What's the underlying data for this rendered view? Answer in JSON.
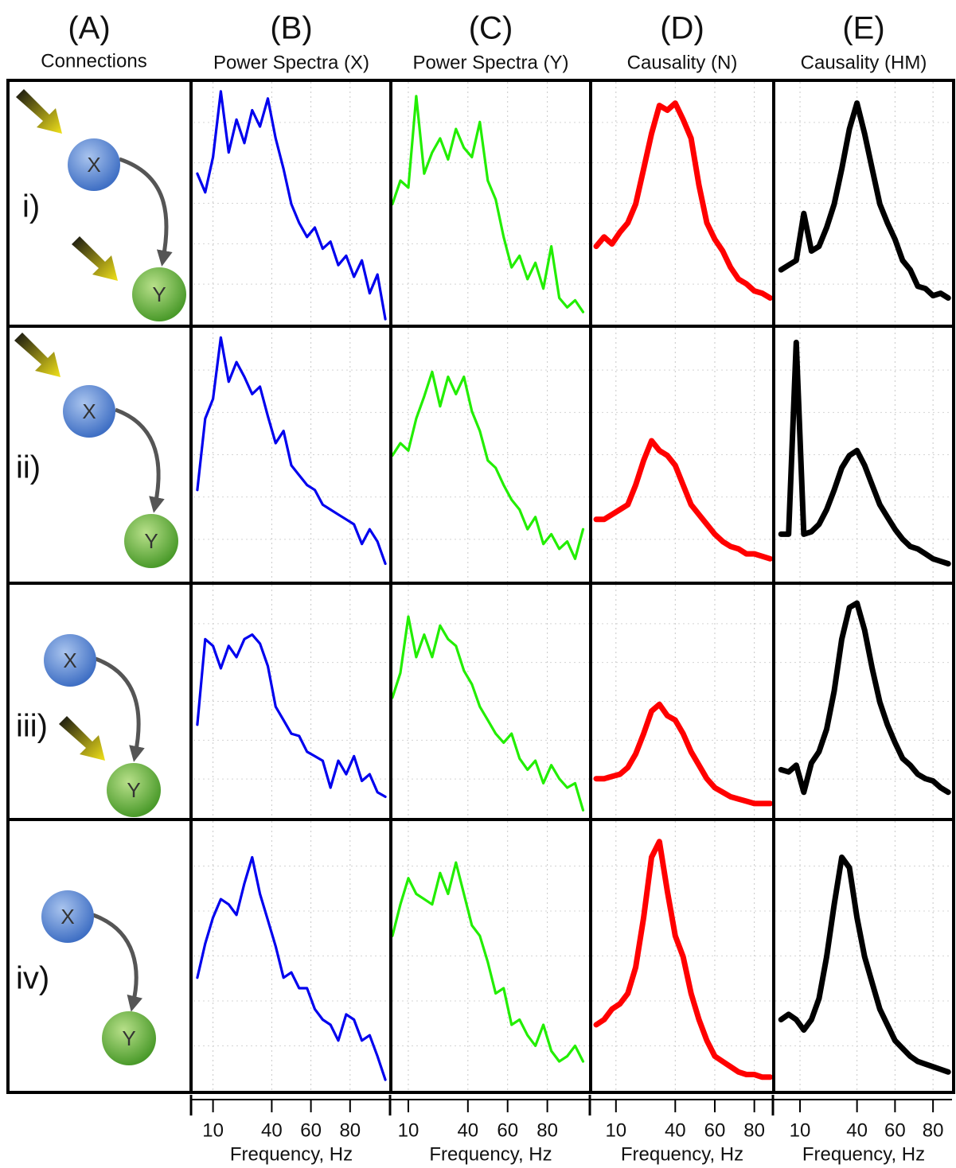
{
  "panel_a": {
    "letter": "(A)",
    "title": "Connections",
    "rows": [
      "i)",
      "ii)",
      "iii)",
      "iv)"
    ],
    "node_x": "X",
    "node_y": "Y"
  },
  "chart_data": [
    {
      "type": "line",
      "panel": "(B)",
      "title": "Power Spectra (X)",
      "x": [
        2,
        6,
        10,
        14,
        18,
        22,
        26,
        30,
        34,
        38,
        42,
        46,
        50,
        54,
        58,
        62,
        66,
        70,
        74,
        78,
        82,
        86,
        90,
        94,
        98
      ],
      "values": [
        6.3,
        5.5,
        7.0,
        9.8,
        7.2,
        8.6,
        7.6,
        9.0,
        8.3,
        9.5,
        7.8,
        6.5,
        5.0,
        4.2,
        3.6,
        4.0,
        3.1,
        3.4,
        2.4,
        2.8,
        1.9,
        2.6,
        1.2,
        2.0,
        0.1
      ],
      "color": "#0000ee",
      "xlim": [
        0,
        100
      ],
      "ylim": [
        0,
        10
      ],
      "xticks": [
        10,
        40,
        60,
        80
      ],
      "grid": true
    },
    {
      "type": "line",
      "panel": "(C)",
      "title": "Power Spectra (Y)",
      "x": [
        2,
        6,
        10,
        14,
        18,
        22,
        26,
        30,
        34,
        38,
        42,
        46,
        50,
        54,
        58,
        62,
        66,
        70,
        74,
        78,
        82,
        86,
        90,
        94,
        98
      ],
      "values": [
        5.0,
        6.0,
        5.7,
        9.6,
        6.3,
        7.2,
        7.8,
        6.9,
        8.2,
        7.4,
        7.0,
        8.5,
        6.0,
        5.2,
        3.6,
        2.3,
        2.8,
        1.8,
        2.5,
        1.4,
        3.2,
        1.0,
        0.6,
        0.9,
        0.4
      ],
      "color": "#22ee00",
      "xlim": [
        2,
        101
      ],
      "ylim": [
        0,
        10
      ],
      "xticks": [
        10,
        40,
        60,
        80
      ],
      "grid": true
    },
    {
      "type": "line",
      "panel": "(D)",
      "title": "Causality (N)",
      "x": [
        0,
        4,
        8,
        12,
        16,
        20,
        24,
        28,
        32,
        36,
        40,
        44,
        48,
        52,
        56,
        60,
        64,
        68,
        72,
        76,
        80,
        84,
        88
      ],
      "values": [
        3.2,
        3.6,
        3.3,
        3.8,
        4.2,
        5.0,
        6.5,
        8.0,
        9.2,
        9.0,
        9.3,
        8.6,
        7.8,
        5.8,
        4.2,
        3.5,
        3.0,
        2.3,
        1.8,
        1.6,
        1.3,
        1.2,
        1.0
      ],
      "color": "#ff0000",
      "xlim": [
        -2,
        89
      ],
      "ylim": [
        0,
        10
      ],
      "xticks": [
        10,
        40,
        60,
        80
      ],
      "grid": true
    },
    {
      "type": "line",
      "panel": "(E)",
      "title": "Causality (HM)",
      "x": [
        0,
        4,
        8,
        12,
        16,
        20,
        24,
        28,
        32,
        36,
        40,
        44,
        48,
        52,
        56,
        60,
        64,
        68,
        72,
        76,
        80,
        84,
        88
      ],
      "values": [
        2.2,
        2.4,
        2.6,
        4.6,
        3.0,
        3.2,
        4.0,
        5.0,
        6.5,
        8.2,
        9.3,
        8.0,
        6.5,
        5.0,
        4.2,
        3.5,
        2.6,
        2.2,
        1.5,
        1.4,
        1.1,
        1.2,
        1.0
      ],
      "color": "#000000",
      "xlim": [
        -3,
        90
      ],
      "ylim": [
        0,
        10
      ],
      "xticks": [
        10,
        40,
        60,
        80
      ],
      "grid": true
    },
    {
      "type": "line",
      "x": [
        2,
        6,
        10,
        14,
        18,
        22,
        26,
        30,
        34,
        38,
        42,
        46,
        50,
        54,
        58,
        62,
        66,
        70,
        74,
        78,
        82,
        86,
        90,
        94,
        98
      ],
      "values": [
        3.6,
        6.5,
        7.3,
        9.8,
        8.0,
        8.8,
        8.2,
        7.5,
        7.8,
        6.6,
        5.5,
        6.0,
        4.6,
        4.2,
        3.8,
        3.6,
        3.0,
        2.8,
        2.6,
        2.4,
        2.2,
        1.4,
        2.0,
        1.5,
        0.6
      ],
      "color": "#0000ee",
      "xlim": [
        0,
        100
      ],
      "ylim": [
        0,
        10
      ],
      "xticks": [
        10,
        40,
        60,
        80
      ],
      "grid": true
    },
    {
      "type": "line",
      "x": [
        2,
        6,
        10,
        14,
        18,
        22,
        26,
        30,
        34,
        38,
        42,
        46,
        50,
        54,
        58,
        62,
        66,
        70,
        74,
        78,
        82,
        86,
        90,
        94,
        98
      ],
      "values": [
        5.0,
        5.5,
        5.2,
        6.5,
        7.4,
        8.4,
        7.0,
        8.2,
        7.5,
        8.2,
        6.8,
        6.0,
        4.8,
        4.5,
        3.8,
        3.2,
        2.8,
        2.0,
        2.5,
        1.4,
        1.8,
        1.2,
        1.5,
        0.8,
        2.0
      ],
      "color": "#22ee00",
      "xlim": [
        2,
        101
      ],
      "ylim": [
        0,
        10
      ],
      "xticks": [
        10,
        40,
        60,
        80
      ],
      "grid": true
    },
    {
      "type": "line",
      "x": [
        0,
        4,
        8,
        12,
        16,
        20,
        24,
        28,
        32,
        36,
        40,
        44,
        48,
        52,
        56,
        60,
        64,
        68,
        72,
        76,
        80,
        84,
        88
      ],
      "values": [
        2.4,
        2.4,
        2.6,
        2.8,
        3.0,
        3.8,
        4.8,
        5.6,
        5.2,
        5.0,
        4.6,
        3.8,
        3.0,
        2.6,
        2.2,
        1.8,
        1.5,
        1.3,
        1.2,
        1.0,
        1.0,
        0.9,
        0.8
      ],
      "color": "#ff0000",
      "xlim": [
        -2,
        89
      ],
      "ylim": [
        0,
        10
      ],
      "xticks": [
        10,
        40,
        60,
        80
      ],
      "grid": true
    },
    {
      "type": "line",
      "x": [
        0,
        4,
        8,
        12,
        16,
        20,
        24,
        28,
        32,
        36,
        40,
        44,
        48,
        52,
        56,
        60,
        64,
        68,
        72,
        76,
        80,
        84,
        88
      ],
      "values": [
        1.8,
        1.8,
        9.6,
        1.8,
        1.9,
        2.2,
        2.8,
        3.6,
        4.5,
        5.0,
        5.2,
        4.6,
        3.8,
        3.0,
        2.5,
        2.0,
        1.6,
        1.3,
        1.2,
        1.0,
        0.8,
        0.7,
        0.6
      ],
      "color": "#000000",
      "xlim": [
        -3,
        90
      ],
      "ylim": [
        0,
        10
      ],
      "xticks": [
        10,
        40,
        60,
        80
      ],
      "grid": true
    },
    {
      "type": "line",
      "x": [
        2,
        6,
        10,
        14,
        18,
        22,
        26,
        30,
        34,
        38,
        42,
        46,
        50,
        54,
        58,
        62,
        66,
        70,
        74,
        78,
        82,
        86,
        90,
        94,
        98
      ],
      "values": [
        4.0,
        7.8,
        7.5,
        6.5,
        7.5,
        7.0,
        7.8,
        8.0,
        7.6,
        6.6,
        4.8,
        4.2,
        3.6,
        3.5,
        2.8,
        2.6,
        2.4,
        1.2,
        2.4,
        1.8,
        2.6,
        1.5,
        1.8,
        1.0,
        0.8
      ],
      "color": "#0000ee",
      "xlim": [
        0,
        100
      ],
      "ylim": [
        0,
        10
      ],
      "xticks": [
        10,
        40,
        60,
        80
      ],
      "grid": true
    },
    {
      "type": "line",
      "x": [
        2,
        6,
        10,
        14,
        18,
        22,
        26,
        30,
        34,
        38,
        42,
        46,
        50,
        54,
        58,
        62,
        66,
        70,
        74,
        78,
        82,
        86,
        90,
        94,
        98
      ],
      "values": [
        5.2,
        6.3,
        8.8,
        7.0,
        8.0,
        7.0,
        8.4,
        7.8,
        7.5,
        6.4,
        5.8,
        4.8,
        4.2,
        3.6,
        3.2,
        3.6,
        2.5,
        2.0,
        2.4,
        1.4,
        2.2,
        1.6,
        1.2,
        1.4,
        0.2
      ],
      "color": "#22ee00",
      "xlim": [
        2,
        101
      ],
      "ylim": [
        0,
        10
      ],
      "xticks": [
        10,
        40,
        60,
        80
      ],
      "grid": true
    },
    {
      "type": "line",
      "x": [
        0,
        4,
        8,
        12,
        16,
        20,
        24,
        28,
        32,
        36,
        40,
        44,
        48,
        52,
        56,
        60,
        64,
        68,
        72,
        76,
        80,
        84,
        88
      ],
      "values": [
        1.6,
        1.6,
        1.7,
        1.8,
        2.1,
        2.7,
        3.6,
        4.6,
        4.9,
        4.4,
        4.2,
        3.6,
        2.8,
        2.2,
        1.6,
        1.2,
        1.0,
        0.8,
        0.7,
        0.6,
        0.5,
        0.5,
        0.5
      ],
      "color": "#ff0000",
      "xlim": [
        -2,
        89
      ],
      "ylim": [
        0,
        10
      ],
      "xticks": [
        10,
        40,
        60,
        80
      ],
      "grid": true
    },
    {
      "type": "line",
      "x": [
        0,
        4,
        8,
        12,
        16,
        20,
        24,
        28,
        32,
        36,
        40,
        44,
        48,
        52,
        56,
        60,
        64,
        68,
        72,
        76,
        80,
        84,
        88
      ],
      "values": [
        2.0,
        1.9,
        2.2,
        1.0,
        2.3,
        2.8,
        3.8,
        5.5,
        7.8,
        9.2,
        9.4,
        8.2,
        6.5,
        5.0,
        4.0,
        3.2,
        2.5,
        2.2,
        1.8,
        1.6,
        1.5,
        1.2,
        1.0
      ],
      "color": "#000000",
      "xlim": [
        -3,
        90
      ],
      "ylim": [
        0,
        10
      ],
      "xticks": [
        10,
        40,
        60,
        80
      ],
      "grid": true
    },
    {
      "type": "line",
      "xlabel": "Frequency, Hz",
      "x": [
        2,
        6,
        10,
        14,
        18,
        22,
        26,
        30,
        34,
        38,
        42,
        46,
        50,
        54,
        58,
        62,
        66,
        70,
        74,
        78,
        82,
        86,
        90,
        94,
        98
      ],
      "values": [
        4.2,
        5.5,
        6.5,
        7.2,
        7.0,
        6.6,
        7.8,
        8.8,
        7.4,
        6.4,
        5.4,
        4.2,
        4.4,
        3.8,
        3.8,
        3.0,
        2.6,
        2.4,
        1.8,
        2.8,
        2.6,
        1.8,
        2.0,
        1.2,
        0.3
      ],
      "color": "#0000ee",
      "xlim": [
        0,
        100
      ],
      "ylim": [
        0,
        10
      ],
      "xticks": [
        10,
        40,
        60,
        80
      ],
      "grid": true
    },
    {
      "type": "line",
      "xlabel": "Frequency, Hz",
      "x": [
        2,
        6,
        10,
        14,
        18,
        22,
        26,
        30,
        34,
        38,
        42,
        46,
        50,
        54,
        58,
        62,
        66,
        70,
        74,
        78,
        82,
        86,
        90,
        94,
        98
      ],
      "values": [
        5.8,
        7.0,
        8.0,
        7.4,
        7.2,
        7.0,
        8.2,
        7.4,
        8.6,
        7.4,
        6.2,
        5.8,
        4.8,
        3.6,
        3.8,
        2.4,
        2.6,
        2.0,
        1.6,
        2.4,
        1.4,
        1.0,
        1.2,
        1.6,
        1.0
      ],
      "color": "#22ee00",
      "xlim": [
        2,
        101
      ],
      "ylim": [
        0,
        10
      ],
      "xticks": [
        10,
        40,
        60,
        80
      ],
      "grid": true
    },
    {
      "type": "line",
      "xlabel": "Frequency, Hz",
      "x": [
        0,
        4,
        8,
        12,
        16,
        20,
        24,
        28,
        32,
        36,
        40,
        44,
        48,
        52,
        56,
        60,
        64,
        68,
        72,
        76,
        80,
        84,
        88
      ],
      "values": [
        2.4,
        2.6,
        3.0,
        3.2,
        3.6,
        4.6,
        6.5,
        8.8,
        9.4,
        7.5,
        5.8,
        5.0,
        3.6,
        2.6,
        1.8,
        1.2,
        1.0,
        0.8,
        0.6,
        0.5,
        0.5,
        0.4,
        0.4
      ],
      "color": "#ff0000",
      "xlim": [
        -2,
        89
      ],
      "ylim": [
        0,
        10
      ],
      "xticks": [
        10,
        40,
        60,
        80
      ],
      "grid": true
    },
    {
      "type": "line",
      "xlabel": "Frequency, Hz",
      "x": [
        0,
        4,
        8,
        12,
        16,
        20,
        24,
        28,
        32,
        36,
        40,
        44,
        48,
        52,
        56,
        60,
        64,
        68,
        72,
        76,
        80,
        84,
        88
      ],
      "values": [
        2.6,
        2.8,
        2.6,
        2.2,
        2.6,
        3.4,
        5.0,
        7.0,
        8.8,
        8.4,
        6.5,
        5.0,
        4.0,
        3.0,
        2.4,
        1.8,
        1.5,
        1.2,
        1.0,
        0.9,
        0.8,
        0.7,
        0.6
      ],
      "color": "#000000",
      "xlim": [
        -3,
        90
      ],
      "ylim": [
        0,
        10
      ],
      "xticks": [
        10,
        40,
        60,
        80
      ],
      "grid": true
    }
  ]
}
